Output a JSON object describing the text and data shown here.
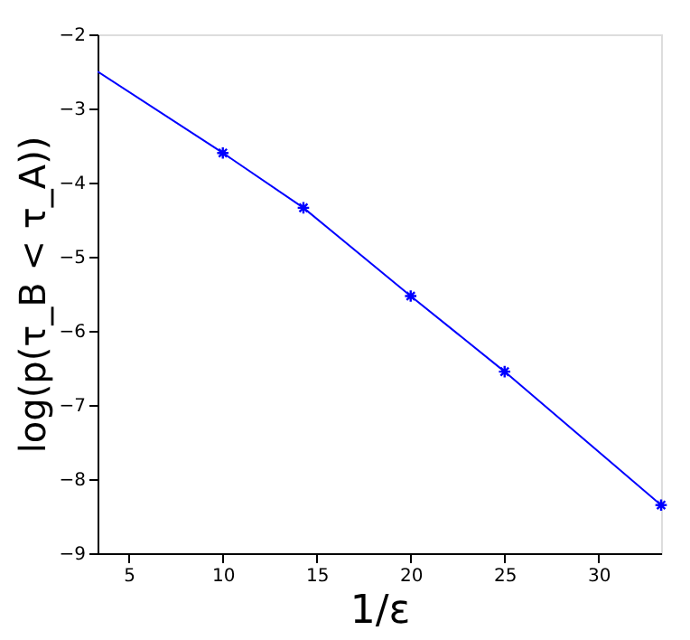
{
  "chart_data": {
    "type": "line",
    "xlabel": "1/ε",
    "ylabel": "log(p(τ_B < τ_A))",
    "xlim": [
      3.33,
      33.33
    ],
    "ylim": [
      -9,
      -2
    ],
    "xticks": [
      5,
      10,
      15,
      20,
      25,
      30
    ],
    "yticks": [
      -9,
      -8,
      -7,
      -6,
      -5,
      -4,
      -3,
      -2
    ],
    "grid": false,
    "series": [
      {
        "type": "line",
        "color": "#0000ff",
        "marker": "none",
        "x": [
          3.33,
          10,
          14.29,
          20,
          25,
          33.33
        ],
        "values": [
          -2.5,
          -3.6,
          -4.34,
          -5.53,
          -6.55,
          -8.35
        ]
      },
      {
        "type": "scatter",
        "color": "#0000ff",
        "marker": "cross",
        "x": [
          10,
          14.29,
          20,
          25,
          33.33
        ],
        "values": [
          -3.6,
          -4.34,
          -5.53,
          -6.55,
          -8.35
        ]
      }
    ]
  }
}
